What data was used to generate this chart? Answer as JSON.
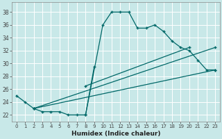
{
  "xlabel": "Humidex (Indice chaleur)",
  "bg_color": "#c8e8e8",
  "grid_color": "#ffffff",
  "line_color": "#006868",
  "xlim": [
    -0.5,
    23.5
  ],
  "ylim": [
    21.0,
    39.5
  ],
  "xticks": [
    0,
    1,
    2,
    3,
    4,
    5,
    6,
    7,
    8,
    9,
    10,
    11,
    12,
    13,
    14,
    15,
    16,
    17,
    18,
    19,
    20,
    21,
    22,
    23
  ],
  "yticks": [
    22,
    24,
    26,
    28,
    30,
    32,
    34,
    36,
    38
  ],
  "series0_x": [
    0,
    1,
    2,
    3,
    4,
    5,
    6,
    7,
    8,
    10,
    11,
    12,
    13,
    14,
    15,
    16,
    17,
    18,
    19,
    20,
    21,
    22,
    23
  ],
  "series0_y": [
    25,
    24,
    23,
    22.5,
    22.5,
    22.5,
    22,
    22,
    22,
    36,
    38,
    38,
    38,
    35.5,
    35.5,
    36,
    35,
    33.5,
    32.5,
    32,
    30.5,
    29,
    29
  ],
  "series1_x": [
    8,
    9
  ],
  "series1_y": [
    22,
    29.5
  ],
  "line2_x": [
    2,
    23
  ],
  "line2_y": [
    23,
    29
  ],
  "line3_x": [
    2,
    23
  ],
  "line3_y": [
    23,
    32.5
  ],
  "line4_x": [
    8,
    20
  ],
  "line4_y": [
    26.5,
    32.5
  ]
}
